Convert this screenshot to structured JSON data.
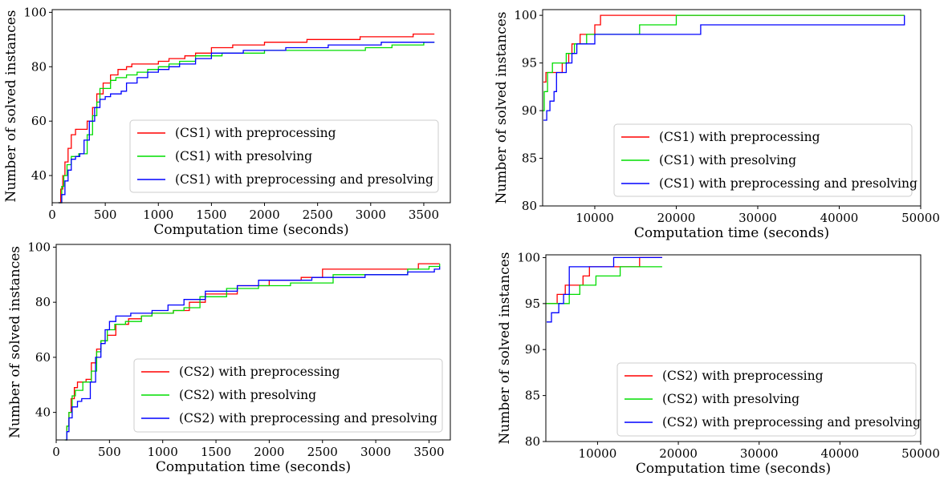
{
  "figure": {
    "panel_count": 4
  },
  "colors": {
    "preprocessing": "#ff0000",
    "presolving": "#00dd00",
    "both": "#0000ff"
  },
  "chart_data": [
    {
      "type": "line",
      "step": true,
      "xlabel": "Computation time (seconds)",
      "ylabel": "Number of solved instances",
      "xlim": [
        0,
        3750
      ],
      "ylim": [
        30,
        101
      ],
      "xticks": [
        0,
        500,
        1000,
        1500,
        2000,
        2500,
        3000,
        3500
      ],
      "yticks": [
        40,
        60,
        80,
        100
      ],
      "grid": false,
      "legend_position": "lower-right",
      "series": [
        {
          "name": "(CS1) with preprocessing",
          "color": "#ff0000",
          "points": [
            [
              60,
              30
            ],
            [
              80,
              35
            ],
            [
              100,
              40
            ],
            [
              120,
              45
            ],
            [
              150,
              50
            ],
            [
              180,
              55
            ],
            [
              220,
              57
            ],
            [
              300,
              57
            ],
            [
              330,
              60
            ],
            [
              380,
              65
            ],
            [
              420,
              70
            ],
            [
              480,
              74
            ],
            [
              550,
              77
            ],
            [
              620,
              79
            ],
            [
              700,
              80
            ],
            [
              750,
              81
            ],
            [
              1000,
              82
            ],
            [
              1100,
              83
            ],
            [
              1250,
              84
            ],
            [
              1350,
              85
            ],
            [
              1500,
              87
            ],
            [
              1700,
              88
            ],
            [
              2000,
              89
            ],
            [
              2400,
              90
            ],
            [
              2900,
              91
            ],
            [
              3400,
              92
            ],
            [
              3600,
              92
            ]
          ]
        },
        {
          "name": "(CS1) with presolving",
          "color": "#00dd00",
          "points": [
            [
              60,
              30
            ],
            [
              90,
              36
            ],
            [
              110,
              40
            ],
            [
              140,
              44
            ],
            [
              180,
              47
            ],
            [
              250,
              48
            ],
            [
              330,
              55
            ],
            [
              380,
              62
            ],
            [
              420,
              67
            ],
            [
              450,
              72
            ],
            [
              550,
              75
            ],
            [
              600,
              76
            ],
            [
              700,
              77
            ],
            [
              800,
              78
            ],
            [
              900,
              79
            ],
            [
              1000,
              80
            ],
            [
              1100,
              81
            ],
            [
              1200,
              82
            ],
            [
              1350,
              84
            ],
            [
              1600,
              85
            ],
            [
              2000,
              86
            ],
            [
              2500,
              86
            ],
            [
              2800,
              86
            ],
            [
              2950,
              87
            ],
            [
              3200,
              88
            ],
            [
              3500,
              89
            ],
            [
              3600,
              89
            ]
          ]
        },
        {
          "name": "(CS1) with preprocessing and presolving",
          "color": "#0000ff",
          "points": [
            [
              60,
              30
            ],
            [
              90,
              33
            ],
            [
              120,
              38
            ],
            [
              150,
              42
            ],
            [
              180,
              46
            ],
            [
              220,
              47
            ],
            [
              260,
              48
            ],
            [
              300,
              53
            ],
            [
              350,
              60
            ],
            [
              400,
              65
            ],
            [
              450,
              68
            ],
            [
              500,
              69
            ],
            [
              550,
              70
            ],
            [
              650,
              71
            ],
            [
              700,
              74
            ],
            [
              800,
              76
            ],
            [
              900,
              78
            ],
            [
              1000,
              79
            ],
            [
              1100,
              80
            ],
            [
              1200,
              81
            ],
            [
              1350,
              83
            ],
            [
              1500,
              85
            ],
            [
              1800,
              86
            ],
            [
              2200,
              87
            ],
            [
              2600,
              88
            ],
            [
              3100,
              89
            ],
            [
              3600,
              89
            ]
          ]
        }
      ]
    },
    {
      "type": "line",
      "step": true,
      "xlabel": "Computation time (seconds)",
      "ylabel": "Number of solved instances",
      "xlim": [
        3600,
        50000
      ],
      "ylim": [
        80,
        100.6
      ],
      "xticks": [
        10000,
        20000,
        30000,
        40000,
        50000
      ],
      "yticks": [
        80,
        85,
        90,
        95,
        100
      ],
      "grid": false,
      "legend_position": "lower-right",
      "series": [
        {
          "name": "(CS1) with preprocessing",
          "color": "#ff0000",
          "points": [
            [
              3700,
              93
            ],
            [
              4000,
              94
            ],
            [
              4800,
              94
            ],
            [
              6000,
              95
            ],
            [
              6800,
              96
            ],
            [
              7200,
              97
            ],
            [
              8000,
              97
            ],
            [
              8200,
              98
            ],
            [
              9500,
              98
            ],
            [
              10000,
              99
            ],
            [
              10700,
              100
            ],
            [
              48000,
              100
            ]
          ]
        },
        {
          "name": "(CS1) with presolving",
          "color": "#00dd00",
          "points": [
            [
              3600,
              90
            ],
            [
              3800,
              92
            ],
            [
              4200,
              94
            ],
            [
              4800,
              95
            ],
            [
              6500,
              96
            ],
            [
              7500,
              97
            ],
            [
              9000,
              98
            ],
            [
              15500,
              99
            ],
            [
              20000,
              100
            ],
            [
              48000,
              100
            ]
          ]
        },
        {
          "name": "(CS1) with preprocessing and presolving",
          "color": "#0000ff",
          "points": [
            [
              3700,
              89
            ],
            [
              4100,
              90
            ],
            [
              4500,
              91
            ],
            [
              5000,
              92
            ],
            [
              5300,
              94
            ],
            [
              5700,
              94
            ],
            [
              6500,
              95
            ],
            [
              7200,
              96
            ],
            [
              7800,
              97
            ],
            [
              9000,
              97
            ],
            [
              10000,
              98
            ],
            [
              23000,
              99
            ],
            [
              48000,
              100
            ]
          ]
        }
      ]
    },
    {
      "type": "line",
      "step": true,
      "xlabel": "Computation time (seconds)",
      "ylabel": "Number of solved instances",
      "xlim": [
        0,
        3700
      ],
      "ylim": [
        30,
        101
      ],
      "xticks": [
        0,
        500,
        1000,
        1500,
        2000,
        2500,
        3000,
        3500
      ],
      "yticks": [
        40,
        60,
        80,
        100
      ],
      "grid": false,
      "legend_position": "lower-right",
      "series": [
        {
          "name": "(CS2) with preprocessing",
          "color": "#ff0000",
          "points": [
            [
              90,
              30
            ],
            [
              100,
              35
            ],
            [
              120,
              40
            ],
            [
              140,
              45
            ],
            [
              170,
              49
            ],
            [
              200,
              51
            ],
            [
              280,
              52
            ],
            [
              330,
              58
            ],
            [
              380,
              63
            ],
            [
              420,
              66
            ],
            [
              480,
              68
            ],
            [
              560,
              72
            ],
            [
              680,
              74
            ],
            [
              800,
              75
            ],
            [
              900,
              76
            ],
            [
              1100,
              77
            ],
            [
              1250,
              80
            ],
            [
              1400,
              83
            ],
            [
              1700,
              86
            ],
            [
              2000,
              88
            ],
            [
              2300,
              89
            ],
            [
              2500,
              92
            ],
            [
              3400,
              94
            ],
            [
              3600,
              94
            ]
          ]
        },
        {
          "name": "(CS2) with presolving",
          "color": "#00dd00",
          "points": [
            [
              80,
              30
            ],
            [
              100,
              35
            ],
            [
              120,
              40
            ],
            [
              150,
              46
            ],
            [
              180,
              48
            ],
            [
              250,
              51
            ],
            [
              330,
              55
            ],
            [
              380,
              62
            ],
            [
              420,
              66
            ],
            [
              480,
              70
            ],
            [
              550,
              72
            ],
            [
              650,
              73
            ],
            [
              800,
              75
            ],
            [
              900,
              76
            ],
            [
              1100,
              77
            ],
            [
              1200,
              78
            ],
            [
              1350,
              82
            ],
            [
              1600,
              85
            ],
            [
              1900,
              86
            ],
            [
              2200,
              87
            ],
            [
              2600,
              90
            ],
            [
              3300,
              92
            ],
            [
              3500,
              93
            ],
            [
              3600,
              94
            ]
          ]
        },
        {
          "name": "(CS2) with preprocessing and presolving",
          "color": "#0000ff",
          "points": [
            [
              90,
              30
            ],
            [
              100,
              33
            ],
            [
              120,
              38
            ],
            [
              150,
              42
            ],
            [
              200,
              44
            ],
            [
              240,
              45
            ],
            [
              320,
              51
            ],
            [
              370,
              60
            ],
            [
              420,
              65
            ],
            [
              460,
              70
            ],
            [
              500,
              73
            ],
            [
              560,
              75
            ],
            [
              700,
              76
            ],
            [
              900,
              77
            ],
            [
              1050,
              79
            ],
            [
              1200,
              81
            ],
            [
              1400,
              84
            ],
            [
              1700,
              86
            ],
            [
              1900,
              88
            ],
            [
              2400,
              89
            ],
            [
              2900,
              90
            ],
            [
              3300,
              91
            ],
            [
              3550,
              92
            ],
            [
              3600,
              93
            ]
          ]
        }
      ]
    },
    {
      "type": "line",
      "step": true,
      "xlabel": "Computation time (seconds)",
      "ylabel": "Number of solved instances",
      "xlim": [
        3600,
        50000
      ],
      "ylim": [
        80,
        100.3
      ],
      "xticks": [
        10000,
        20000,
        30000,
        40000,
        50000
      ],
      "yticks": [
        80,
        85,
        90,
        95,
        100
      ],
      "grid": false,
      "legend_position": "lower-right",
      "series": [
        {
          "name": "(CS2) with preprocessing",
          "color": "#ff0000",
          "points": [
            [
              3600,
              95
            ],
            [
              4200,
              95
            ],
            [
              5000,
              96
            ],
            [
              6000,
              97
            ],
            [
              8200,
              98
            ],
            [
              9000,
              99
            ],
            [
              15000,
              99
            ],
            [
              15200,
              100
            ],
            [
              18000,
              100
            ]
          ]
        },
        {
          "name": "(CS2) with presolving",
          "color": "#00dd00",
          "points": [
            [
              3600,
              95
            ],
            [
              6500,
              96
            ],
            [
              7800,
              97
            ],
            [
              9800,
              98
            ],
            [
              12800,
              99
            ],
            [
              15000,
              99
            ],
            [
              18000,
              99
            ]
          ]
        },
        {
          "name": "(CS2) with preprocessing and presolving",
          "color": "#0000ff",
          "points": [
            [
              3700,
              93
            ],
            [
              4300,
              94
            ],
            [
              5200,
              95
            ],
            [
              5800,
              96
            ],
            [
              6500,
              99
            ],
            [
              12000,
              100
            ],
            [
              18000,
              100
            ]
          ]
        }
      ]
    }
  ]
}
